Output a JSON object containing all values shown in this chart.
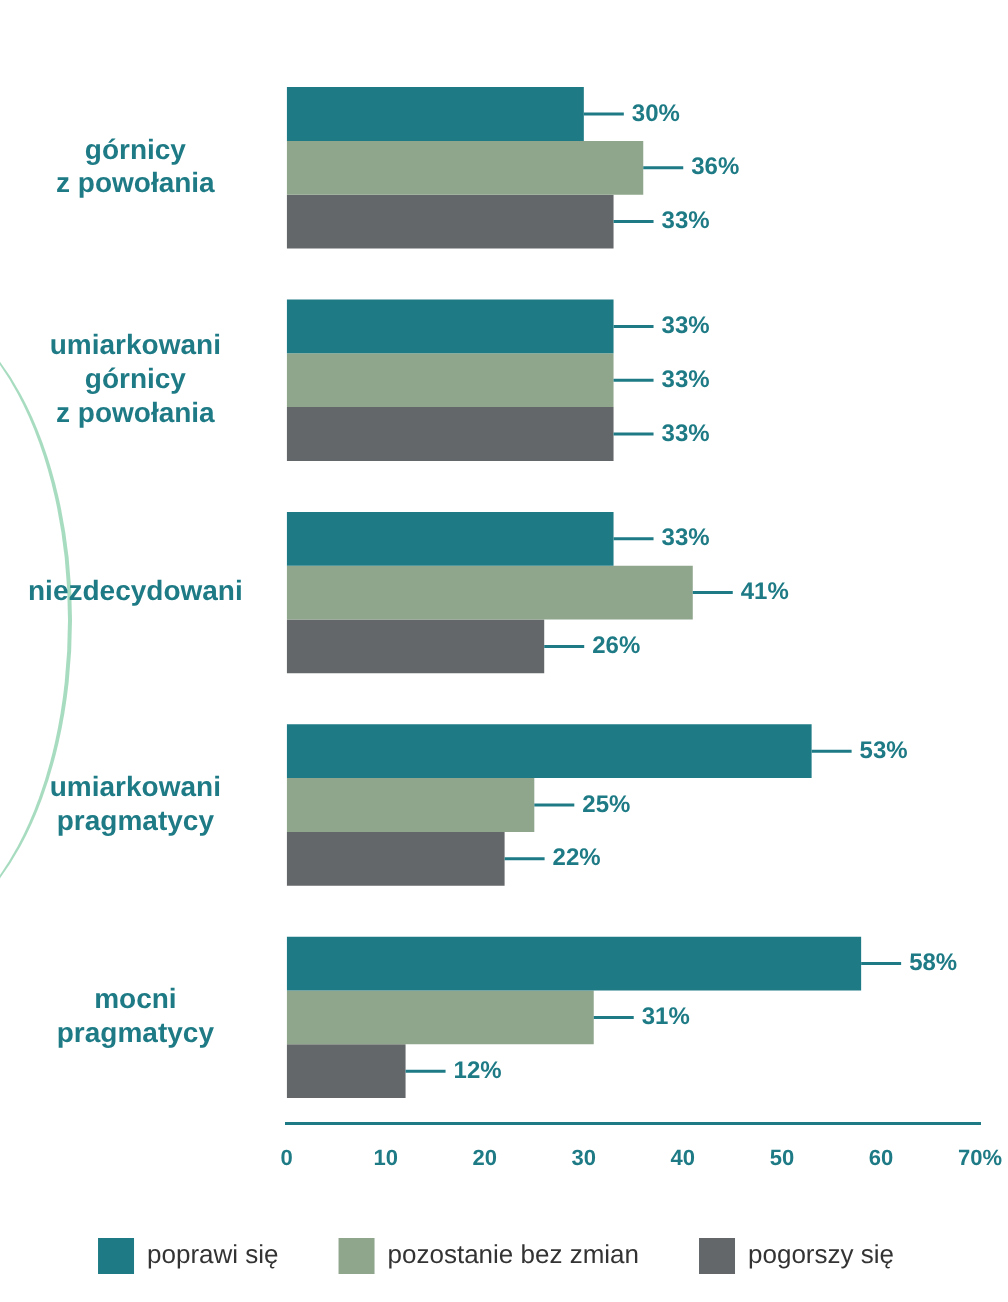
{
  "chart_data": {
    "type": "bar",
    "orientation": "horizontal",
    "categories": [
      "górnicy\nz powołania",
      "umiarkowani\ngórnicy\nz powołania",
      "niezdecydowani",
      "umiarkowani\npragmatycy",
      "mocni\npragmatycy"
    ],
    "series": [
      {
        "name": "poprawi się",
        "color": "#1e7b86",
        "values": [
          30,
          33,
          33,
          53,
          58
        ],
        "value_labels": [
          "30%",
          "33%",
          "33%",
          "53%",
          "58%"
        ]
      },
      {
        "name": "pozostanie bez zmian",
        "color": "#8fa68d",
        "values": [
          36,
          33,
          41,
          25,
          31
        ],
        "value_labels": [
          "36%",
          "33%",
          "41%",
          "25%",
          "31%"
        ]
      },
      {
        "name": "pogorszy się",
        "color": "#646769",
        "values": [
          33,
          33,
          26,
          22,
          12
        ],
        "value_labels": [
          "33%",
          "33%",
          "26%",
          "22%",
          "12%"
        ]
      }
    ],
    "xlim": [
      0,
      70
    ],
    "xticks": [
      0,
      10,
      20,
      30,
      40,
      50,
      60,
      {
        "value": 70,
        "label": "70%"
      }
    ],
    "grid": false,
    "legend": "bottom"
  }
}
